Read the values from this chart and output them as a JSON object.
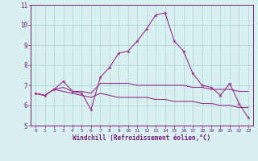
{
  "x": [
    0,
    1,
    2,
    3,
    4,
    5,
    6,
    7,
    8,
    9,
    10,
    11,
    12,
    13,
    14,
    15,
    16,
    17,
    18,
    19,
    20,
    21,
    22,
    23
  ],
  "line1": [
    6.6,
    6.5,
    6.8,
    7.2,
    6.7,
    6.6,
    5.8,
    7.4,
    7.9,
    8.6,
    8.7,
    9.2,
    9.8,
    10.5,
    10.6,
    9.2,
    8.7,
    7.6,
    7.0,
    6.9,
    6.5,
    7.1,
    6.1,
    5.4
  ],
  "line2": [
    6.6,
    6.5,
    6.8,
    6.9,
    6.7,
    6.7,
    6.6,
    7.1,
    7.1,
    7.1,
    7.1,
    7.0,
    7.0,
    7.0,
    7.0,
    7.0,
    7.0,
    6.9,
    6.9,
    6.8,
    6.8,
    6.8,
    6.7,
    6.7
  ],
  "line3": [
    6.6,
    6.5,
    6.8,
    6.7,
    6.6,
    6.5,
    6.4,
    6.6,
    6.5,
    6.4,
    6.4,
    6.4,
    6.4,
    6.3,
    6.3,
    6.2,
    6.2,
    6.2,
    6.1,
    6.1,
    6.0,
    6.0,
    5.9,
    5.9
  ],
  "line_color": "#9b2d8e",
  "bg_color": "#d8f0f0",
  "grid_color": "#b0d8d8",
  "axis_color": "#7a1a7a",
  "ylim": [
    5,
    11
  ],
  "yticks": [
    5,
    6,
    7,
    8,
    9,
    10,
    11
  ],
  "xlabel": "Windchill (Refroidissement éolien,°C)",
  "font_color": "#7a1a7a"
}
